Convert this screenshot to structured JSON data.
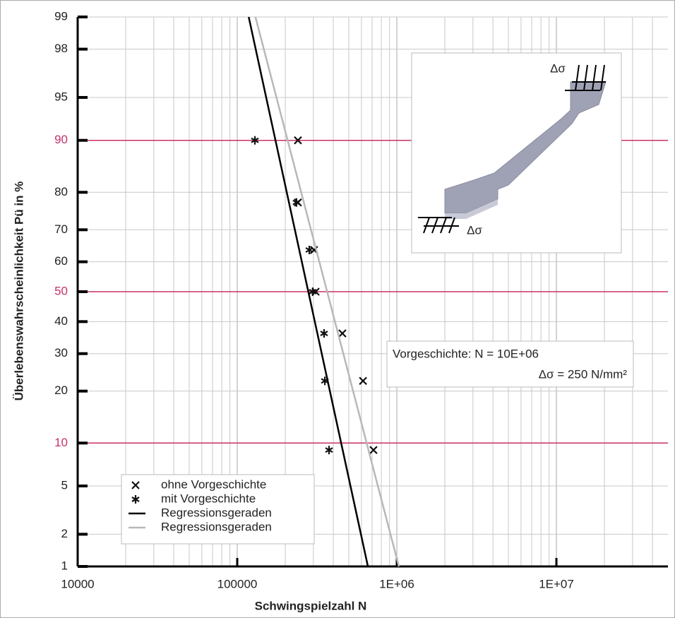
{
  "chart_data": {
    "type": "probability-scatter",
    "x_label": "Schwingspielzahl N",
    "y_label": "Überlebenswahrscheinlichkeit Pü in %",
    "xscale": "log",
    "yscale": "normal-probability",
    "xlim": [
      10000,
      50000000
    ],
    "ylim": [
      1,
      99
    ],
    "xticks": [
      10000,
      100000,
      {
        "value": 1000000,
        "label": "1E+06"
      },
      {
        "value": 10000000,
        "label": "1E+07"
      }
    ],
    "yticks": [
      1,
      2,
      5,
      10,
      20,
      30,
      40,
      50,
      60,
      70,
      80,
      90,
      95,
      98,
      99
    ],
    "highlight_yticks": [
      10,
      50,
      90
    ],
    "highlight_color": "#c8306a",
    "grid": true,
    "legend": "lower left",
    "series": [
      {
        "name": "ohne Vorgeschichte",
        "marker": "x",
        "color": "#111111",
        "x": [
          240000,
          240000,
          303000,
          310000,
          456000,
          614000,
          714000
        ],
        "values": [
          90,
          77.5,
          63.8,
          50,
          36.2,
          22.5,
          9.0
        ]
      },
      {
        "name": "mit Vorgeschichte",
        "marker": "asterisk",
        "color": "#111111",
        "x": [
          129000,
          235000,
          283000,
          297000,
          350000,
          354000,
          376000
        ],
        "values": [
          90,
          77.5,
          63.8,
          50,
          36.2,
          22.5,
          9.0
        ]
      },
      {
        "name": "Regressionsgeraden",
        "marker": "line",
        "color": "#000000",
        "x": [
          118000,
          659000
        ],
        "values": [
          99,
          1
        ]
      },
      {
        "name": "Regressionsgeraden",
        "marker": "line",
        "color": "#b8b8b8",
        "x": [
          130000,
          1030000
        ],
        "values": [
          99,
          1
        ]
      }
    ],
    "annotation": {
      "lines": [
        "Vorgeschichte: N  = 10E+06",
        "Δσ = 250 N/mm²"
      ]
    },
    "inset": {
      "load_top": "Δσ",
      "load_bottom": "Δσ"
    }
  }
}
